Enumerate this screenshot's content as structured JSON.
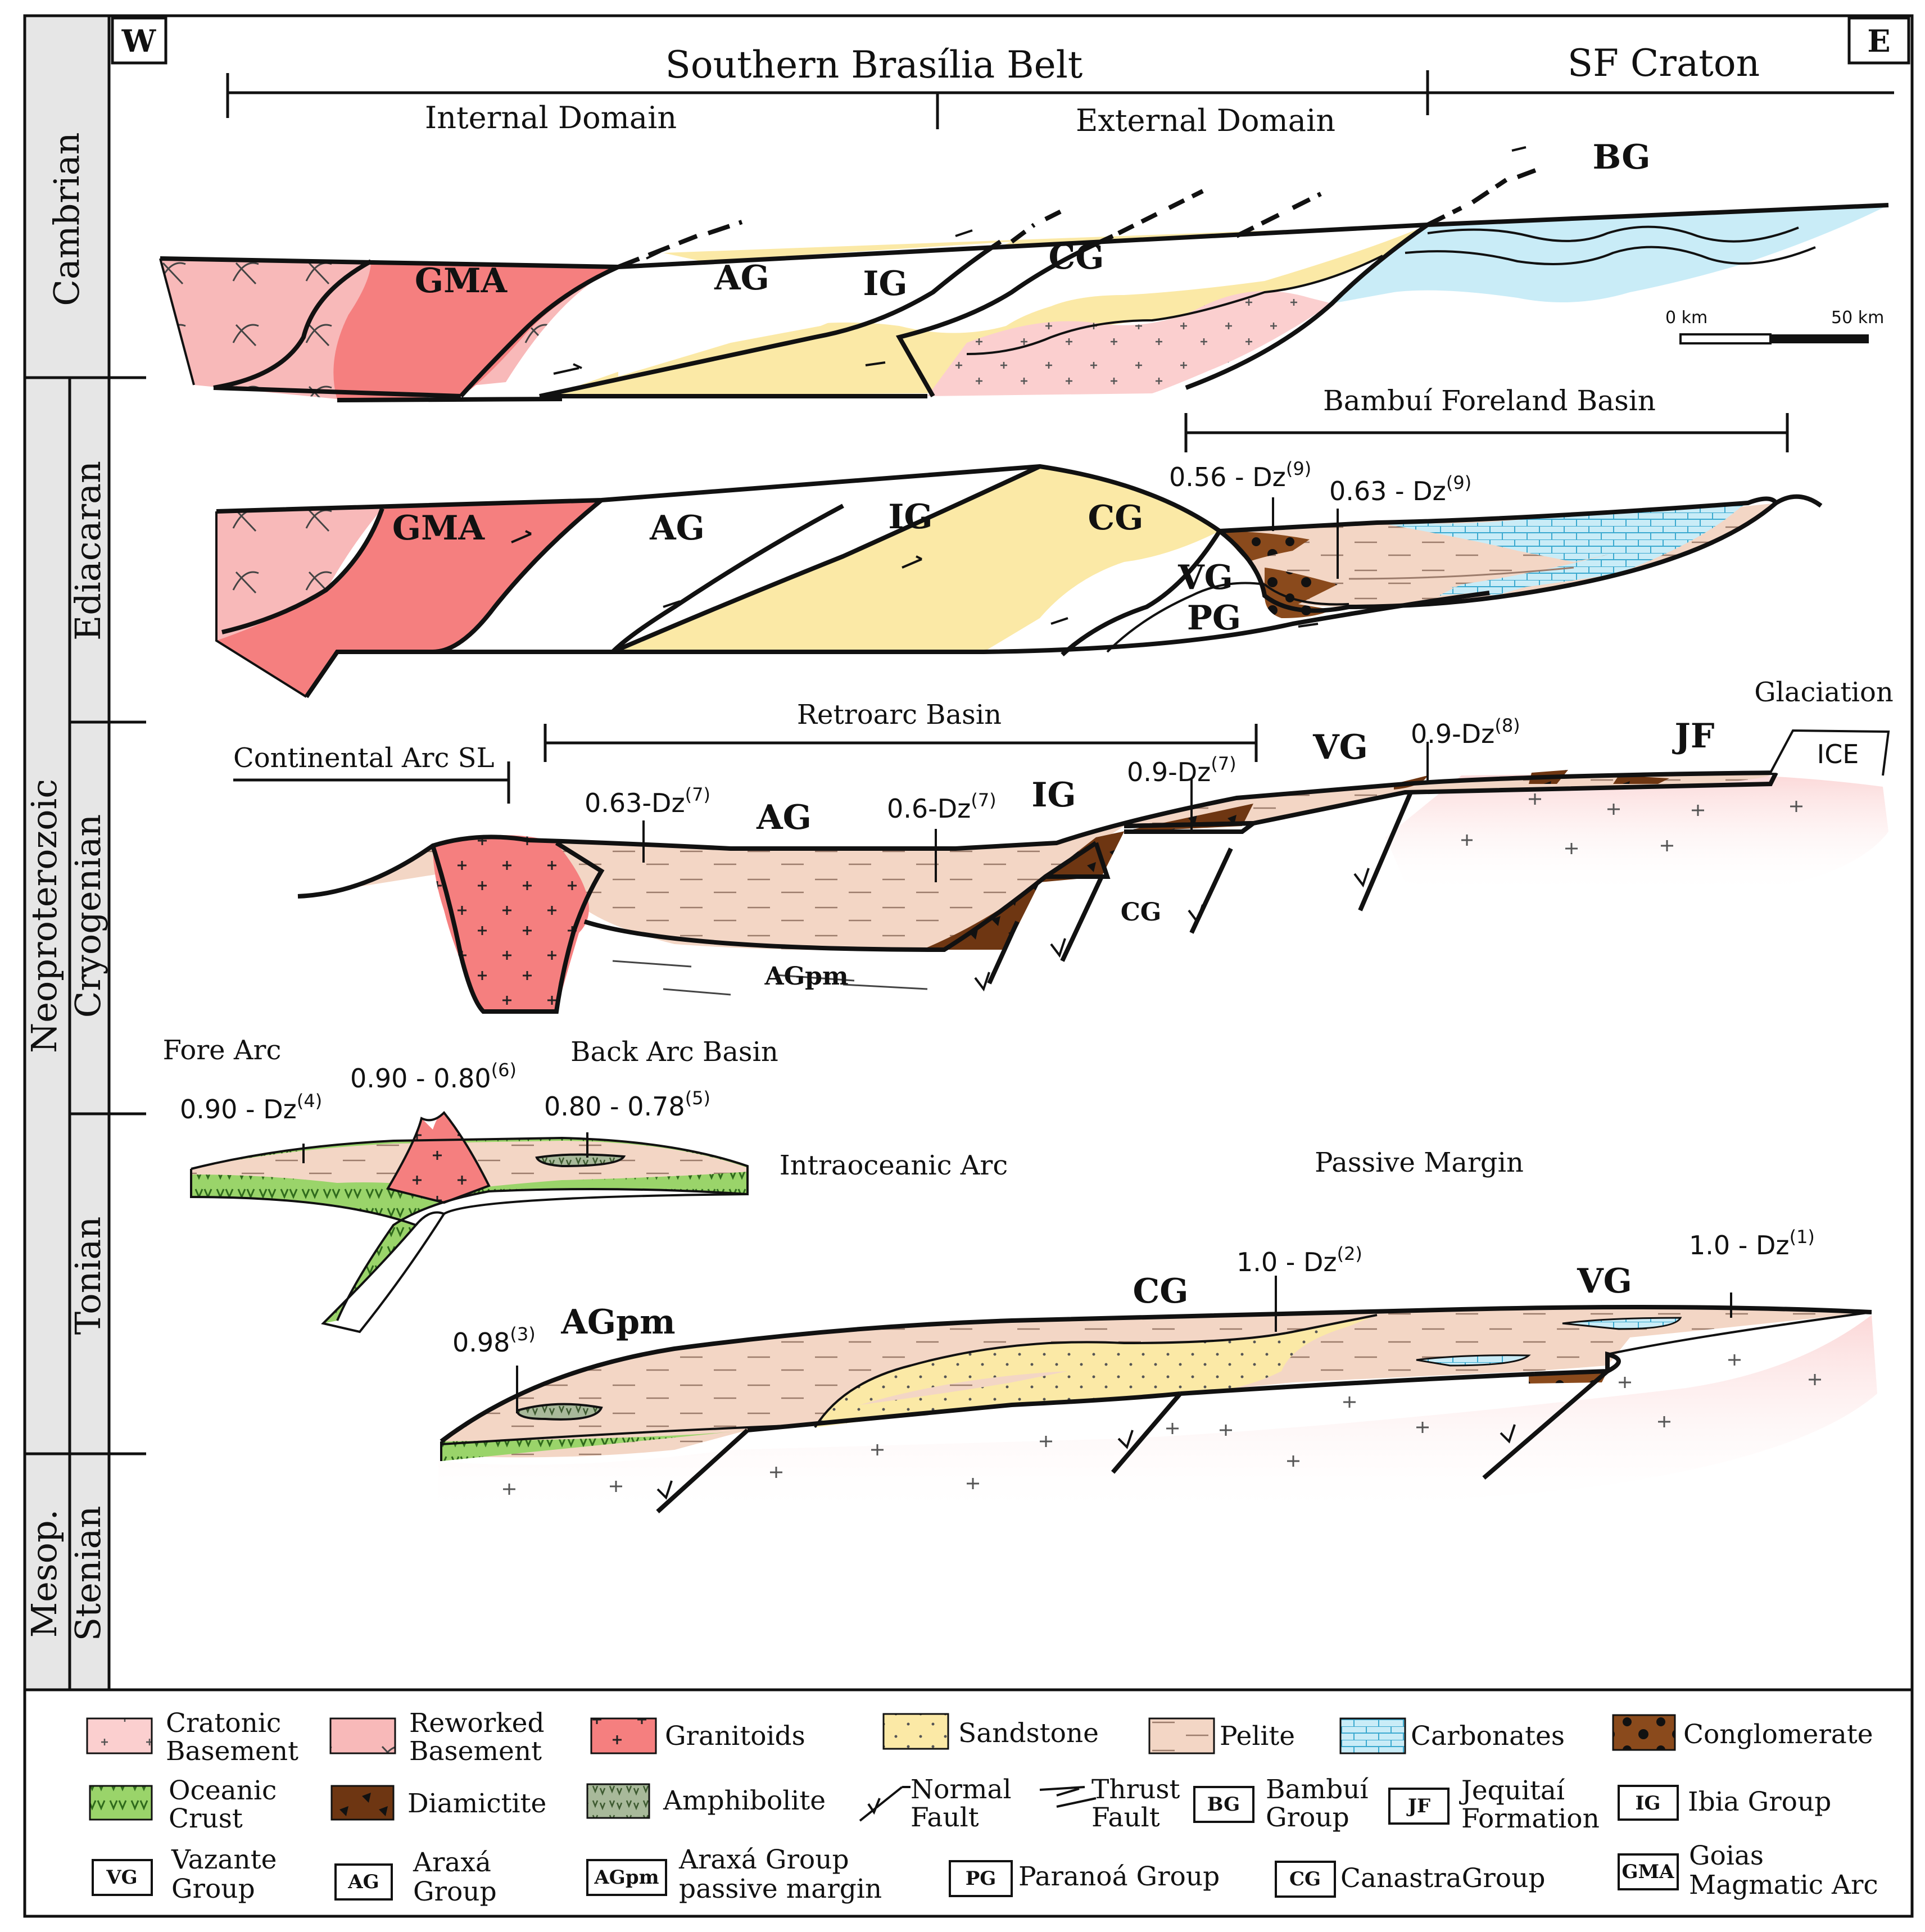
{
  "corner_labels": {
    "west": "W",
    "east": "E"
  },
  "header": {
    "belt": "Southern Brasília Belt",
    "craton": "SF Craton",
    "internal_domain": "Internal Domain",
    "external_domain": "External Domain"
  },
  "periods": {
    "cambrian": "Cambrian",
    "ediacaran": "Ediacaran",
    "cryogenian": "Cryogenian",
    "tonian": "Tonian",
    "stenian": "Stenian",
    "neoproterozoic": "Neoproterozoic",
    "mesop": "Mesop."
  },
  "scale_bar": {
    "start": "0 km",
    "end": "50 km"
  },
  "cambrian_section": {
    "gma": "GMA",
    "ag": "AG",
    "ig": "IG",
    "cg": "CG",
    "bg": "BG"
  },
  "ediacaran_section": {
    "basin_title": "Bambuí Foreland Basin",
    "gma": "GMA",
    "ag": "AG",
    "ig": "IG",
    "cg": "CG",
    "vg": "VG",
    "pg": "PG",
    "age1": {
      "text": "0.56 - Dz",
      "ref": "(9)"
    },
    "age2": {
      "text": "0.63 - Dz",
      "ref": "(9)"
    }
  },
  "cryogenian_section": {
    "arc_label": "Continental Arc SL",
    "basin_title": "Retroarc Basin",
    "glaciation": "Glaciation",
    "ice": "ICE",
    "ag": "AG",
    "ig": "IG",
    "vg": "VG",
    "jf": "JF",
    "cg": "CG",
    "agpm": "AGpm",
    "age1": {
      "text": "0.63-Dz",
      "ref": "(7)"
    },
    "age2": {
      "text": "0.6-Dz",
      "ref": "(7)"
    },
    "age3": {
      "text": "0.9-Dz",
      "ref": "(7)"
    },
    "age4": {
      "text": "0.9-Dz",
      "ref": "(8)"
    }
  },
  "tonian_section": {
    "fore_arc": "Fore Arc",
    "back_arc": "Back Arc Basin",
    "intraoceanic": "Intraoceanic Arc",
    "passive_margin": "Passive Margin",
    "age_fore": {
      "text": "0.90 - Dz",
      "ref": "(4)"
    },
    "age_arc": {
      "text": "0.90 - 0.80",
      "ref": "(6)"
    },
    "age_back": {
      "text": "0.80 - 0.78",
      "ref": "(5)"
    },
    "agpm": "AGpm",
    "cg": "CG",
    "vg": "VG",
    "age_amph": {
      "text": "0.98",
      "ref": "(3)"
    },
    "age_cg": {
      "text": "1.0 - Dz",
      "ref": "(2)"
    },
    "age_vg": {
      "text": "1.0 - Dz",
      "ref": "(1)"
    }
  },
  "legend": {
    "cratonic_1": "Cratonic",
    "cratonic_2": "Basement",
    "reworked_1": "Reworked",
    "reworked_2": "Basement",
    "granitoids": "Granitoids",
    "sandstone": "Sandstone",
    "pelite": "Pelite",
    "carbonates": "Carbonates",
    "conglomerate": "Conglomerate",
    "oceanic_1": "Oceanic",
    "oceanic_2": "Crust",
    "diamictite": "Diamictite",
    "amphibolite": "Amphibolite",
    "normal_1": "Normal",
    "normal_2": "Fault",
    "thrust_1": "Thrust",
    "thrust_2": "Fault",
    "bg_box": "BG",
    "bg_1": "Bambuí",
    "bg_2": "Group",
    "jf_box": "JF",
    "jf_1": "Jequitaí",
    "jf_2": "Formation",
    "ig_box": "IG",
    "ig_1": "Ibia  Group",
    "vg_box": "VG",
    "vg_1": "Vazante",
    "vg_2": "Group",
    "ag_box": "AG",
    "ag_1": "Araxá",
    "ag_2": "Group",
    "agpm_box": "AGpm",
    "agpm_1": "Araxá Group",
    "agpm_2": "passive margin",
    "pg_box": "PG",
    "pg_1": "Paranoá Group",
    "cg_box": "CG",
    "cg_1": "CanastraGroup",
    "gma_box": "GMA",
    "gma_1": "Goias",
    "gma_2": "Magmatic Arc"
  },
  "colors": {
    "cratonic": "#fbcfcf",
    "reworked": "#f8b9b9",
    "granitoid": "#f57f7f",
    "sandstone": "#fbe9a6",
    "pelite": "#f3d6c5",
    "carbonate": "#c9ecf7",
    "conglomerate": "#8a4a1c",
    "oceanic": "#9ad46a",
    "diamictite": "#6e3612",
    "amphibolite": "#a8b99a"
  }
}
